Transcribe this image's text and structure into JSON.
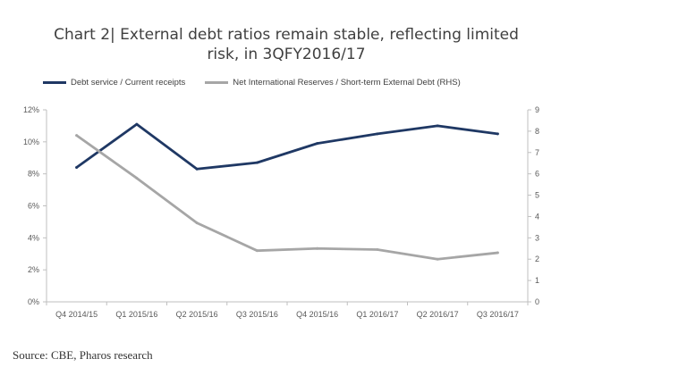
{
  "chart_data": {
    "type": "line",
    "title_lines": [
      "Chart 2| External debt ratios remain stable, reflecting limited",
      "risk, in 3QFY2016/17"
    ],
    "categories": [
      "Q4 2014/15",
      "Q1 2015/16",
      "Q2 2015/16",
      "Q3 2015/16",
      "Q4 2015/16",
      "Q1 2016/17",
      "Q2 2016/17",
      "Q3 2016/17"
    ],
    "left_axis": {
      "min": 0,
      "max": 12,
      "step": 2,
      "ticks": [
        "0%",
        "2%",
        "4%",
        "6%",
        "8%",
        "10%",
        "12%"
      ]
    },
    "right_axis": {
      "min": 0,
      "max": 9,
      "step": 1,
      "ticks": [
        "0",
        "1",
        "2",
        "3",
        "4",
        "5",
        "6",
        "7",
        "8",
        "9"
      ]
    },
    "series": [
      {
        "name": "Debt service / Current receipts",
        "axis": "left",
        "color": "#1f3864",
        "values": [
          8.4,
          11.1,
          8.3,
          8.7,
          9.9,
          10.5,
          11.0,
          10.5
        ]
      },
      {
        "name": "Net International Reserves / Short-term External Debt (RHS)",
        "axis": "right",
        "color": "#a6a6a6",
        "values": [
          7.8,
          5.8,
          3.7,
          2.4,
          2.5,
          2.45,
          2.0,
          2.3
        ]
      }
    ],
    "grid": false,
    "legend_position": "top-left"
  },
  "source": "Source: CBE, Pharos research"
}
